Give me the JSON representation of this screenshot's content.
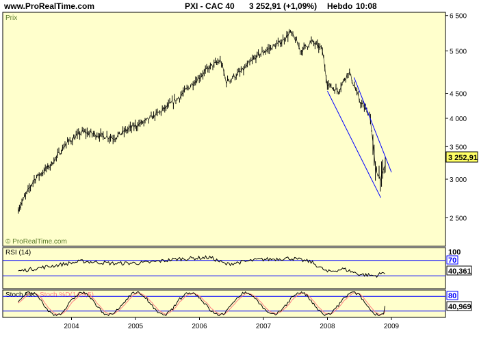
{
  "header": {
    "site": "www.ProRealTime.com",
    "instrument": "PXI - CAC 40",
    "last": "3 252,91 (+1,09%)",
    "period": "Hebdo",
    "time": "10:08"
  },
  "colors": {
    "panel_bg": "#ffffcc",
    "price_line": "#000000",
    "trend_lines": "#0000ff",
    "stoch_signal": "#ff8080",
    "price_tag": "#ffff66"
  },
  "price_panel": {
    "label": "Prix",
    "watermark": "© ProRealTime.com",
    "last_value_label": "3 252,91"
  },
  "rsi_panel": {
    "label": "RSI (14)",
    "last_value_label": "40,361",
    "level_high_label": "70",
    "top_label": "100"
  },
  "stoch_panel": {
    "label_k": "Stoch %K",
    "label_d": "Stoch %D(14,3,5)",
    "last_value_label": "40,969",
    "level_high_label": "80"
  },
  "chart_data": [
    {
      "type": "line",
      "name": "price",
      "x": [
        "2003-03",
        "2003-06",
        "2003-09",
        "2003-12",
        "2004-03",
        "2004-06",
        "2004-09",
        "2004-12",
        "2005-03",
        "2005-06",
        "2005-09",
        "2005-12",
        "2006-03",
        "2006-05",
        "2006-06",
        "2006-09",
        "2006-12",
        "2007-02",
        "2007-04",
        "2007-06",
        "2007-07",
        "2007-08",
        "2007-10",
        "2007-12",
        "2008-01",
        "2008-03",
        "2008-05",
        "2008-07",
        "2008-09",
        "2008-10",
        "2008-11",
        "2008-12"
      ],
      "values": [
        2600,
        3000,
        3200,
        3550,
        3750,
        3700,
        3650,
        3820,
        3950,
        4150,
        4400,
        4750,
        5100,
        5250,
        4750,
        5000,
        5400,
        5550,
        5700,
        6000,
        5800,
        5500,
        5750,
        5550,
        4700,
        4550,
        5000,
        4350,
        4050,
        3150,
        3000,
        3253
      ],
      "ylim": [
        2200,
        6600
      ],
      "yscale": "log",
      "yticks": [
        2500,
        3000,
        3500,
        4000,
        4500,
        5500,
        6500
      ],
      "ytick_labels": [
        "2 500",
        "3 000",
        "3 500",
        "4 000",
        "4 500",
        "5 500",
        "6 500"
      ],
      "xticks": [
        "2004",
        "2005",
        "2006",
        "2007",
        "2008",
        "2009"
      ],
      "trend_lines": [
        {
          "from": [
            "2008-01",
            4550
          ],
          "to": [
            "2008-11",
            2750
          ]
        },
        {
          "from": [
            "2008-06",
            4850
          ],
          "to": [
            "2009-01",
            3100
          ]
        }
      ],
      "grid": false
    },
    {
      "type": "line",
      "name": "RSI (14)",
      "x": [
        "2003-03",
        "2003-09",
        "2004-03",
        "2004-09",
        "2005-03",
        "2005-09",
        "2006-03",
        "2006-06",
        "2006-12",
        "2007-06",
        "2007-10",
        "2008-01",
        "2008-04",
        "2008-07",
        "2008-10",
        "2008-12"
      ],
      "values": [
        42,
        55,
        68,
        62,
        64,
        74,
        78,
        60,
        72,
        76,
        66,
        40,
        48,
        34,
        30,
        40.361
      ],
      "ylim": [
        0,
        100
      ],
      "levels": [
        30,
        70
      ],
      "last": 40.361
    },
    {
      "type": "line",
      "name": "Stoch %K",
      "values_range": [
        0,
        100
      ],
      "levels": [
        20,
        80
      ],
      "last": 40.969
    }
  ]
}
